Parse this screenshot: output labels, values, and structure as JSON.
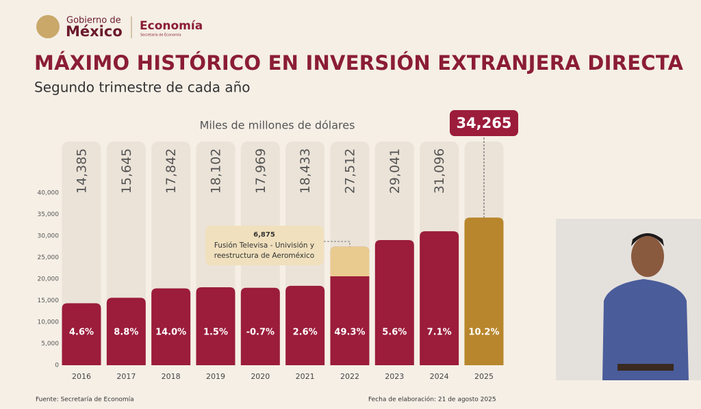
{
  "header": {
    "logo_line1": "Gobierno de",
    "logo_line2": "México",
    "agency": "Economía",
    "agency_sub": "Secretaría de Economía"
  },
  "chart_data": {
    "type": "bar",
    "title": "MÁXIMO HISTÓRICO EN INVERSIÓN EXTRANJERA DIRECTA",
    "subtitle": "Segundo trimestre de cada año",
    "y_label": "Miles de millones de dólares",
    "categories": [
      "2016",
      "2017",
      "2018",
      "2019",
      "2020",
      "2021",
      "2022",
      "2023",
      "2024",
      "2025"
    ],
    "values": [
      14385,
      15645,
      17842,
      18102,
      17969,
      18433,
      27512,
      29041,
      31096,
      34265
    ],
    "value_labels": [
      "14,385",
      "15,645",
      "17,842",
      "18,102",
      "17,969",
      "18,433",
      "27,512",
      "29,041",
      "31,096",
      "34,265"
    ],
    "colors": [
      "#9b1c3b",
      "#9b1c3b",
      "#9b1c3b",
      "#9b1c3b",
      "#9b1c3b",
      "#9b1c3b",
      "#9b1c3b",
      "#9b1c3b",
      "#9b1c3b",
      "#b8862c"
    ],
    "growth": {
      "values": [
        4.6,
        8.8,
        14.0,
        1.5,
        -0.7,
        2.6,
        49.3,
        5.6,
        7.1,
        10.2
      ],
      "value_labels": [
        "4.6%",
        "8.8%",
        "14.0%",
        "1.5%",
        "-0.7%",
        "2.6%",
        "49.3%",
        "5.6%",
        "7.1%",
        "10.2%"
      ]
    },
    "highlight": {
      "values": [
        null,
        null,
        null,
        null,
        null,
        null,
        6875,
        null,
        null,
        null
      ],
      "value_labels": [
        null,
        null,
        null,
        null,
        null,
        null,
        "6,875",
        null,
        null,
        null
      ],
      "color": "#e9cb90",
      "note": [
        "Fusión Televisa - Univisión y",
        "reestructura de Aeroméxico"
      ]
    },
    "ylim": [
      0,
      40000
    ],
    "yticks": [
      0,
      {
        "value": 5000,
        "label": "5,000"
      },
      {
        "value": 10000,
        "label": "10,000"
      },
      {
        "value": 15000,
        "label": "15,000"
      },
      {
        "value": 20000,
        "label": "20,000"
      },
      {
        "value": 25000,
        "label": "25,000"
      },
      {
        "value": 30000,
        "label": "30,000"
      },
      {
        "value": 35000,
        "label": "35,000"
      },
      {
        "value": 40000,
        "label": "40,000"
      }
    ]
  },
  "footer": {
    "source": "Fuente: Secretaría de Economía",
    "date": "Fecha de elaboración: 21 de agosto 2025"
  }
}
